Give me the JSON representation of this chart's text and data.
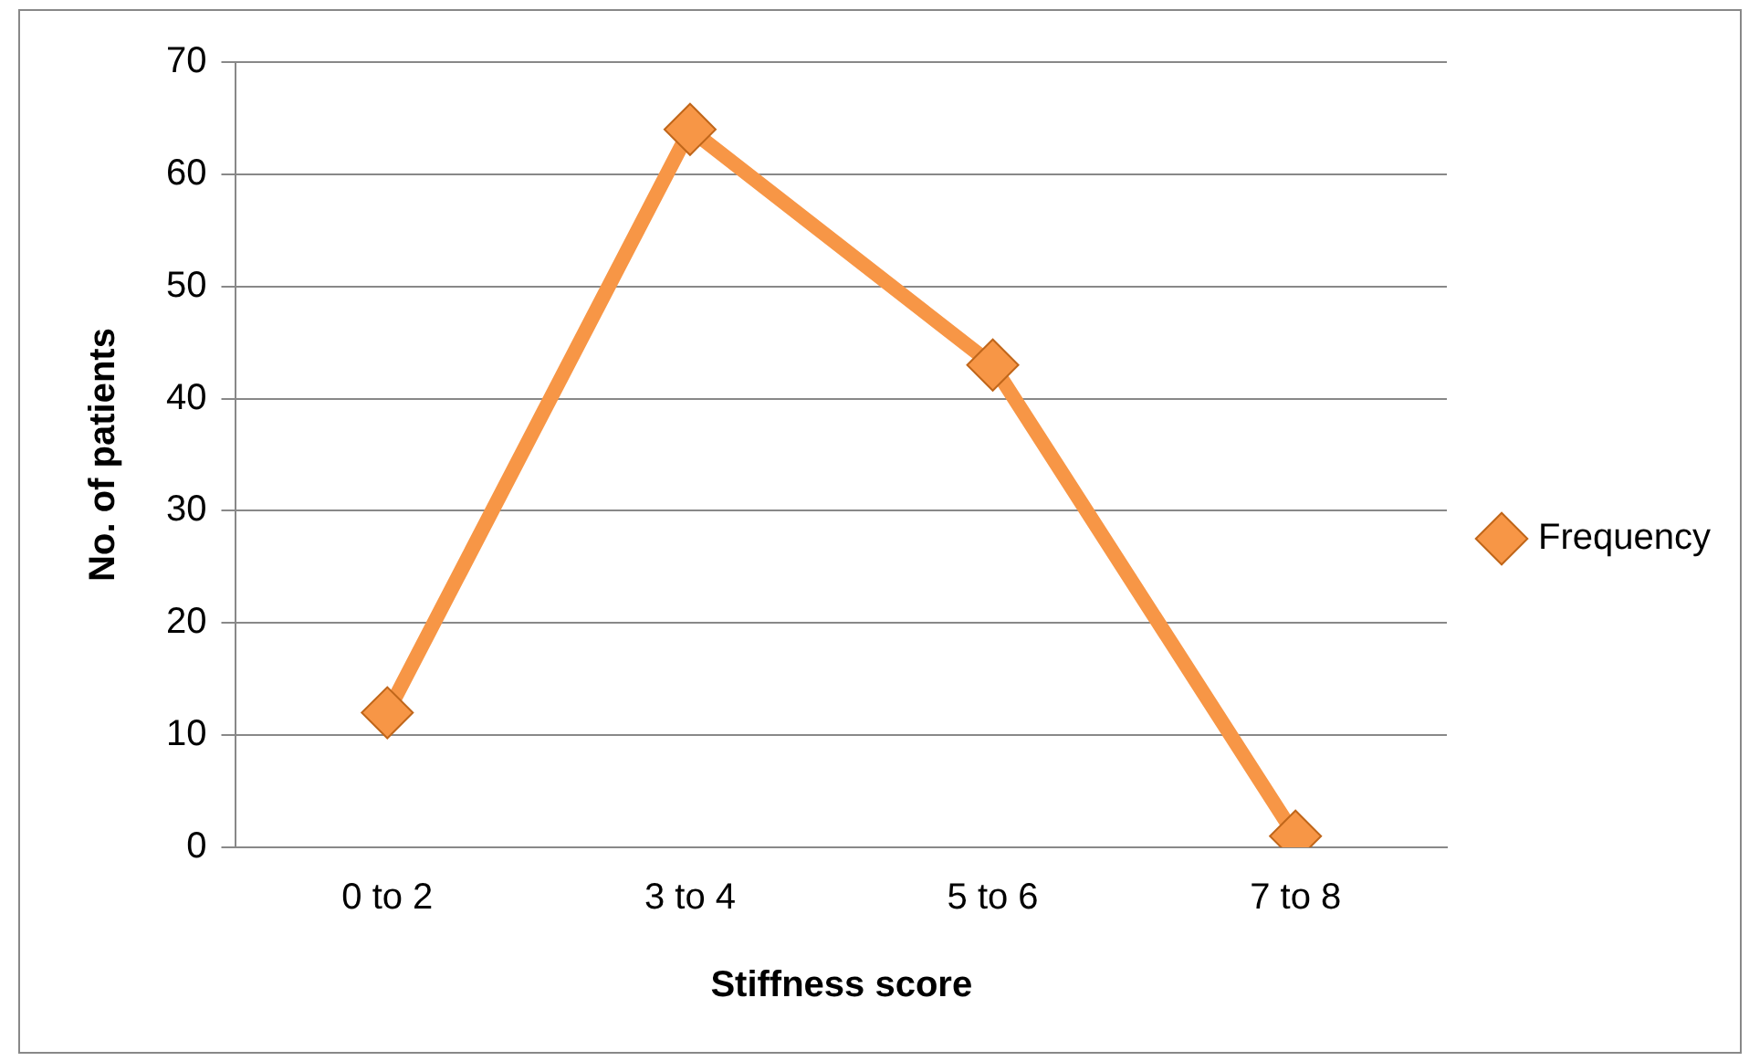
{
  "chart_data": {
    "type": "line",
    "xlabel": "Stiffness score",
    "ylabel": "No. of patients",
    "categories": [
      "0 to 2",
      "3 to 4",
      "5 to 6",
      "7 to 8"
    ],
    "series": [
      {
        "name": "Frequency",
        "color": "#f79646",
        "values": [
          12,
          64,
          43,
          1
        ]
      }
    ],
    "ylim": [
      0,
      70
    ],
    "yticks": [
      0,
      10,
      20,
      30,
      40,
      50,
      60,
      70
    ],
    "grid": "y",
    "legend": "right",
    "marker": "diamond",
    "line_style": "solid"
  }
}
